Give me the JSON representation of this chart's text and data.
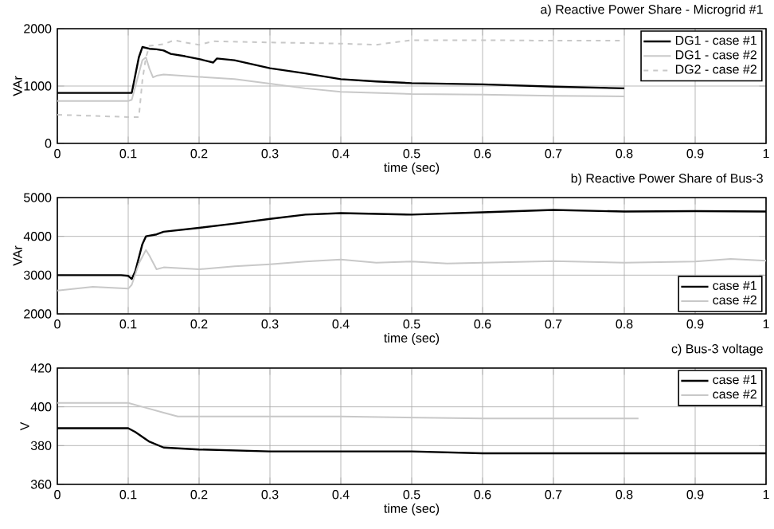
{
  "chart_data": [
    {
      "type": "line",
      "title": "a) Reactive Power Share - Microgrid #1",
      "xlabel": "time (sec)",
      "ylabel": "VAr",
      "xlim": [
        0,
        1
      ],
      "xticks": [
        0,
        0.1,
        0.2,
        0.3,
        0.4,
        0.5,
        0.6,
        0.7,
        0.8,
        0.9,
        1
      ],
      "ylim": [
        0,
        2000
      ],
      "yticks": [
        0,
        1000,
        2000
      ],
      "grid": true,
      "legend": "top right",
      "marker": "none",
      "series": [
        {
          "name": "DG1 - case #1",
          "color": "#000000",
          "line_style": "solid",
          "x": [
            0,
            0.1,
            0.105,
            0.115,
            0.12,
            0.13,
            0.14,
            0.15,
            0.16,
            0.18,
            0.2,
            0.22,
            0.225,
            0.25,
            0.3,
            0.35,
            0.4,
            0.45,
            0.5,
            0.6,
            0.7,
            0.8
          ],
          "values": [
            880,
            880,
            880,
            1500,
            1680,
            1650,
            1640,
            1620,
            1560,
            1520,
            1470,
            1410,
            1480,
            1450,
            1310,
            1220,
            1120,
            1080,
            1050,
            1030,
            990,
            960
          ]
        },
        {
          "name": "DG1 - case #2",
          "color": "#c8c8c8",
          "line_style": "solid",
          "x": [
            0,
            0.1,
            0.105,
            0.12,
            0.125,
            0.13,
            0.135,
            0.14,
            0.15,
            0.2,
            0.25,
            0.3,
            0.35,
            0.4,
            0.5,
            0.6,
            0.7,
            0.8
          ],
          "values": [
            740,
            740,
            760,
            1450,
            1500,
            1300,
            1150,
            1180,
            1200,
            1160,
            1120,
            1040,
            960,
            900,
            860,
            850,
            830,
            820
          ]
        },
        {
          "name": "DG2 - case #2",
          "color": "#c8c8c8",
          "line_style": "dashed",
          "x": [
            0,
            0.1,
            0.115,
            0.12,
            0.125,
            0.13,
            0.15,
            0.165,
            0.18,
            0.2,
            0.22,
            0.3,
            0.4,
            0.45,
            0.5,
            0.6,
            0.7,
            0.8
          ],
          "values": [
            500,
            460,
            460,
            1100,
            1500,
            1700,
            1730,
            1800,
            1760,
            1720,
            1780,
            1760,
            1740,
            1720,
            1800,
            1800,
            1790,
            1790
          ]
        }
      ]
    },
    {
      "type": "line",
      "title": "b) Reactive Power Share of Bus-3",
      "xlabel": "time (sec)",
      "ylabel": "VAr",
      "xlim": [
        0,
        1
      ],
      "xticks": [
        0,
        0.1,
        0.2,
        0.3,
        0.4,
        0.5,
        0.6,
        0.7,
        0.8,
        0.9,
        1
      ],
      "ylim": [
        2000,
        5000
      ],
      "yticks": [
        2000,
        3000,
        4000,
        5000
      ],
      "grid": true,
      "legend": "bottom right",
      "marker": "none",
      "series": [
        {
          "name": "case #1",
          "color": "#000000",
          "x": [
            0,
            0.09,
            0.1,
            0.105,
            0.11,
            0.12,
            0.125,
            0.14,
            0.15,
            0.2,
            0.25,
            0.3,
            0.35,
            0.4,
            0.5,
            0.6,
            0.7,
            0.8,
            0.9,
            1
          ],
          "values": [
            3000,
            3000,
            2980,
            2900,
            3100,
            3800,
            4000,
            4050,
            4120,
            4220,
            4330,
            4450,
            4560,
            4600,
            4560,
            4620,
            4680,
            4640,
            4650,
            4640
          ]
        },
        {
          "name": "case #2",
          "color": "#c8c8c8",
          "x": [
            0,
            0.05,
            0.1,
            0.105,
            0.115,
            0.125,
            0.13,
            0.14,
            0.15,
            0.2,
            0.25,
            0.3,
            0.35,
            0.4,
            0.45,
            0.5,
            0.55,
            0.6,
            0.7,
            0.8,
            0.9,
            0.95,
            1
          ],
          "values": [
            2600,
            2700,
            2650,
            2750,
            3300,
            3650,
            3500,
            3150,
            3200,
            3150,
            3230,
            3280,
            3350,
            3400,
            3320,
            3350,
            3300,
            3320,
            3360,
            3320,
            3350,
            3420,
            3370
          ]
        }
      ]
    },
    {
      "type": "line",
      "title": "c) Bus-3 voltage",
      "xlabel": "time (sec)",
      "ylabel": "V",
      "xlim": [
        0,
        1
      ],
      "xticks": [
        0,
        0.1,
        0.2,
        0.3,
        0.4,
        0.5,
        0.6,
        0.7,
        0.8,
        0.9,
        1
      ],
      "ylim": [
        360,
        420
      ],
      "yticks": [
        360,
        380,
        400,
        420
      ],
      "grid": true,
      "legend": "top right",
      "marker": "none",
      "series": [
        {
          "name": "case #1",
          "color": "#000000",
          "x": [
            0,
            0.1,
            0.11,
            0.13,
            0.15,
            0.2,
            0.3,
            0.5,
            0.6,
            1
          ],
          "values": [
            389,
            389,
            387,
            382,
            379,
            378,
            377,
            377,
            376,
            376
          ]
        },
        {
          "name": "case #2",
          "color": "#c8c8c8",
          "x": [
            0,
            0.1,
            0.12,
            0.15,
            0.17,
            0.2,
            0.4,
            0.6,
            0.82
          ],
          "values": [
            402,
            402,
            400,
            397,
            395,
            395,
            395,
            394,
            394
          ]
        }
      ]
    }
  ]
}
